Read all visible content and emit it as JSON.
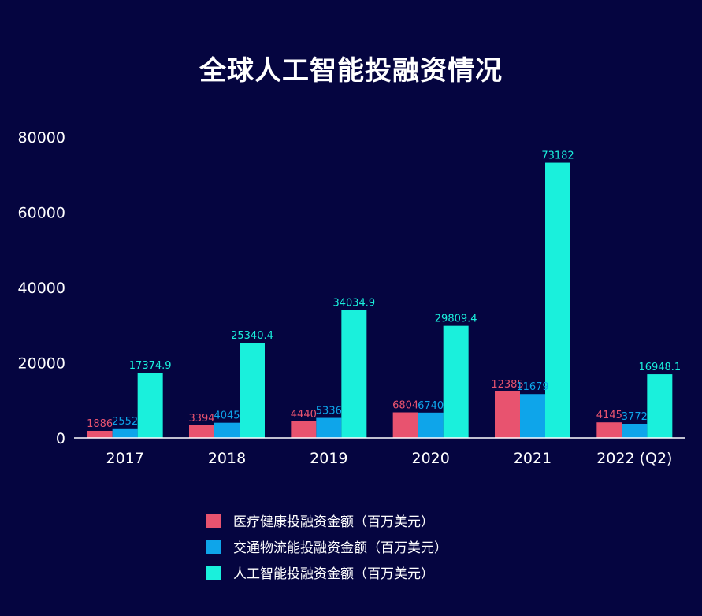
{
  "chart_data": {
    "type": "bar",
    "title": "全球人工智能投融资情况",
    "categories": [
      "2017",
      "2018",
      "2019",
      "2020",
      "2021",
      "2022 (Q2)"
    ],
    "ylim": [
      0,
      80000
    ],
    "yticks": [
      "0",
      "20000",
      "40000",
      "60000",
      "80000"
    ],
    "grid": false,
    "legend_position": "bottom",
    "series": [
      {
        "name": "医疗健康投融资金额（百万美元）",
        "color": "#e8536f",
        "values": [
          1886,
          3394,
          4440,
          6804,
          12385,
          4145
        ],
        "labels": [
          "1886",
          "3394",
          "4440",
          "6804",
          "12385",
          "4145"
        ]
      },
      {
        "name": "交通物流能投融资金额（百万美元）",
        "color": "#0ea5ea",
        "values": [
          2552,
          4045,
          5336,
          6740,
          11679,
          3772
        ],
        "labels": [
          "2552",
          "4045",
          "5336",
          "6740",
          "11679",
          "3772"
        ]
      },
      {
        "name": "人工智能投融资金额（百万美元）",
        "color": "#1af0dc",
        "values": [
          17374.9,
          25340.4,
          34034.9,
          29809.4,
          73182,
          16948.1
        ],
        "labels": [
          "17374.9",
          "25340.4",
          "34034.9",
          "29809.4",
          "73182",
          "16948.1"
        ]
      }
    ]
  }
}
